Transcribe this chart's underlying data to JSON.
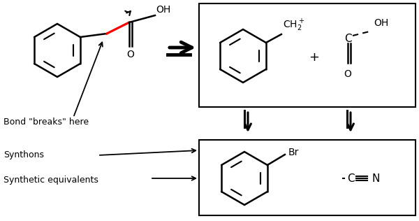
{
  "bg_color": "#ffffff",
  "label_bond": "Bond \"breaks\" here",
  "label_synthons": "Synthons",
  "label_synth_equiv": "Synthetic equivalents",
  "figsize": [
    6.0,
    3.16
  ],
  "dpi": 100
}
